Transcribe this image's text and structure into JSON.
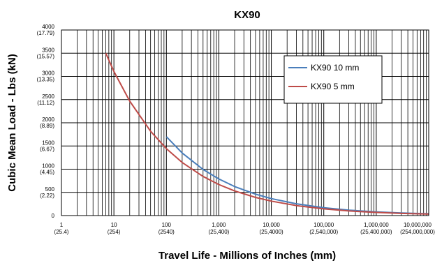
{
  "chart_data": {
    "type": "line",
    "title": "KX90",
    "xlabel": "Travel Life - Millions of Inches (mm)",
    "ylabel": "Cubic Mean Load - Lbs  (kN)",
    "x_scale": "log",
    "xlim": [
      1,
      10000000
    ],
    "ylim": [
      0,
      4000
    ],
    "grid": true,
    "legend_position": "top-right",
    "x_ticks": [
      {
        "value": 1,
        "label": "1",
        "sublabel": "(25.4)"
      },
      {
        "value": 10,
        "label": "10",
        "sublabel": "(254)"
      },
      {
        "value": 100,
        "label": "100",
        "sublabel": "(2540)"
      },
      {
        "value": 1000,
        "label": "1,000",
        "sublabel": "(25,400)"
      },
      {
        "value": 10000,
        "label": "10,000",
        "sublabel": "(25,4000)"
      },
      {
        "value": 100000,
        "label": "100,000",
        "sublabel": "(2,540,000)"
      },
      {
        "value": 1000000,
        "label": "1,000,000",
        "sublabel": "(25,400,000)"
      },
      {
        "value": 10000000,
        "label": "10,000,000",
        "sublabel": "(254,000,000)"
      }
    ],
    "y_ticks": [
      {
        "value": 0,
        "label": "0",
        "sublabel": ""
      },
      {
        "value": 500,
        "label": "500",
        "sublabel": "(2.22)"
      },
      {
        "value": 1000,
        "label": "1000",
        "sublabel": "(4.45)"
      },
      {
        "value": 1500,
        "label": "1500",
        "sublabel": "(6.67)"
      },
      {
        "value": 2000,
        "label": "2000",
        "sublabel": "(8.89)"
      },
      {
        "value": 2500,
        "label": "2500",
        "sublabel": "(11.12)"
      },
      {
        "value": 3000,
        "label": "3000",
        "sublabel": "(13.35)"
      },
      {
        "value": 3500,
        "label": "3500",
        "sublabel": "(15.57)"
      },
      {
        "value": 4000,
        "label": "4000",
        "sublabel": "(17.79)"
      }
    ],
    "series": [
      {
        "name": "KX90 10 mm",
        "color": "#4a7ebb",
        "x": [
          100,
          200,
          500,
          1000,
          2000,
          5000,
          10000,
          30000,
          100000,
          300000,
          1000000,
          3000000,
          10000000
        ],
        "y": [
          1700,
          1349,
          994,
          789,
          626,
          461,
          366,
          254,
          170,
          118,
          79,
          55,
          37
        ]
      },
      {
        "name": "KX90 5 mm",
        "color": "#be4b48",
        "x": [
          7,
          10,
          20,
          50,
          100,
          200,
          500,
          1000,
          2000,
          5000,
          10000,
          30000,
          100000,
          300000,
          1000000,
          3000000,
          10000000
        ],
        "y": [
          3500,
          3107,
          2466,
          1817,
          1442,
          1145,
          843,
          669,
          531,
          391,
          311,
          215,
          144,
          100,
          67,
          46,
          31
        ]
      }
    ]
  }
}
